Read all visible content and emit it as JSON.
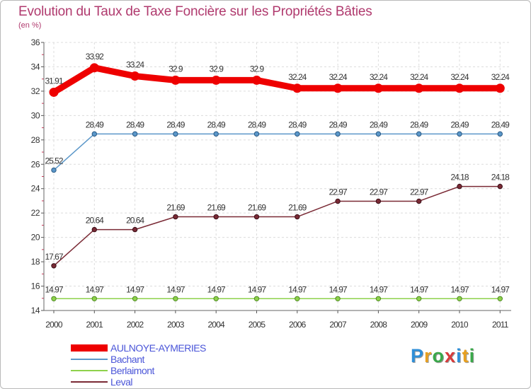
{
  "title": "Evolution du Taux de Taxe Foncière sur les Propriétés Bâties",
  "unit": "(en %)",
  "brand": {
    "text": "Proxiti",
    "letter_colors": [
      "#2f8fd8",
      "#e8a020",
      "#3aa84a",
      "#d83a3a",
      "#2f8fd8",
      "#e8a020",
      "#3aa84a"
    ]
  },
  "chart_data": {
    "type": "line",
    "title": "Evolution du Taux de Taxe Foncière sur les Propriétés Bâties",
    "ylabel": "(en %)",
    "xlabel": "",
    "x": [
      "2000",
      "2001",
      "2002",
      "2003",
      "2004",
      "2005",
      "2006",
      "2007",
      "2008",
      "2009",
      "2010",
      "2011"
    ],
    "ylim": [
      14,
      36
    ],
    "yticks": [
      "14",
      "16",
      "18",
      "20",
      "22",
      "24",
      "26",
      "28",
      "30",
      "32",
      "34",
      "36"
    ],
    "grid": true,
    "legend_position": "bottom-left",
    "series": [
      {
        "name": "AULNOYE-AYMERIES",
        "color": "#ee0000",
        "label_color": "#333333",
        "values": [
          31.91,
          33.92,
          33.24,
          32.9,
          32.9,
          32.9,
          32.24,
          32.24,
          32.24,
          32.24,
          32.24,
          32.24
        ],
        "labels": [
          "31.91",
          "33.92",
          "33.24",
          "32.9",
          "32.9",
          "32.9",
          "32.24",
          "32.24",
          "32.24",
          "32.24",
          "32.24",
          "32.24"
        ]
      },
      {
        "name": "Bachant",
        "color": "#5b97c9",
        "label_color": "#333333",
        "values": [
          25.52,
          28.49,
          28.49,
          28.49,
          28.49,
          28.49,
          28.49,
          28.49,
          28.49,
          28.49,
          28.49,
          28.49
        ],
        "labels": [
          "25.52",
          "28.49",
          "28.49",
          "28.49",
          "28.49",
          "28.49",
          "28.49",
          "28.49",
          "28.49",
          "28.49",
          "28.49",
          "28.49"
        ]
      },
      {
        "name": "Berlaimont",
        "color": "#8ed14b",
        "label_color": "#333333",
        "values": [
          14.97,
          14.97,
          14.97,
          14.97,
          14.97,
          14.97,
          14.97,
          14.97,
          14.97,
          14.97,
          14.97,
          14.97
        ],
        "labels": [
          "14.97",
          "14.97",
          "14.97",
          "14.97",
          "14.97",
          "14.97",
          "14.97",
          "14.97",
          "14.97",
          "14.97",
          "14.97",
          "14.97"
        ]
      },
      {
        "name": "Leval",
        "color": "#7a2a35",
        "label_color": "#333333",
        "values": [
          17.67,
          20.64,
          20.64,
          21.69,
          21.69,
          21.69,
          21.69,
          22.97,
          22.97,
          22.97,
          24.18,
          24.18
        ],
        "labels": [
          "17.67",
          "20.64",
          "20.64",
          "21.69",
          "21.69",
          "21.69",
          "21.69",
          "22.97",
          "22.97",
          "22.97",
          "24.18",
          "24.18"
        ]
      }
    ]
  }
}
